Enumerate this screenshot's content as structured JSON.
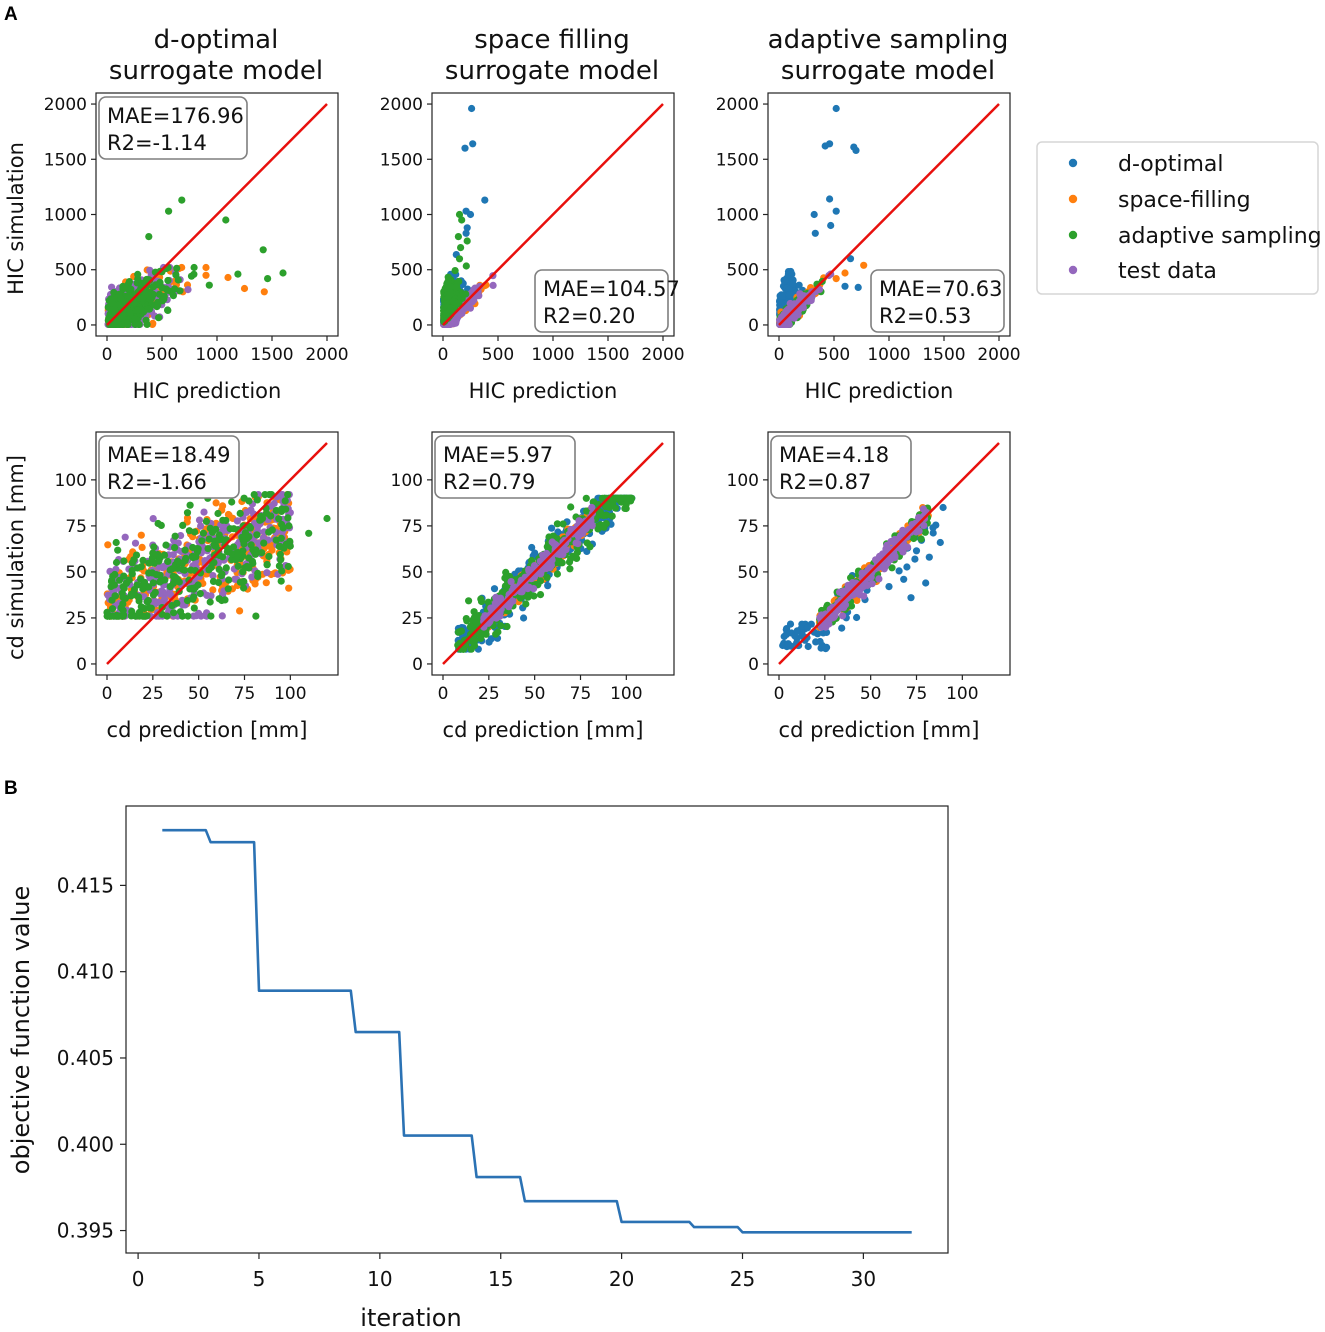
{
  "panel_labels": {
    "a": "A",
    "b": "B"
  },
  "colors": {
    "d_optimal": "#1f77b4",
    "space_filling": "#ff7f0e",
    "adaptive_sampling": "#2ca02c",
    "test_data": "#9467bd",
    "identity_line": "#e8100d",
    "objective_line": "#2b72b4"
  },
  "legend": {
    "items": [
      {
        "key": "d_optimal",
        "label": "d-optimal"
      },
      {
        "key": "space_filling",
        "label": "space-filling"
      },
      {
        "key": "adaptive_sampling",
        "label": "adaptive sampling"
      },
      {
        "key": "test_data",
        "label": "test data"
      }
    ]
  },
  "columns": [
    {
      "title_line1": "d-optimal",
      "title_line2": "surrogate model"
    },
    {
      "title_line1": "space filling",
      "title_line2": "surrogate model"
    },
    {
      "title_line1": "adaptive sampling",
      "title_line2": "surrogate model"
    }
  ],
  "chart_data": [
    {
      "id": "hic_dopt",
      "type": "scatter",
      "title": "d-optimal surrogate model",
      "xlabel": "HIC prediction",
      "ylabel": "HIC simulation",
      "xlim": [
        -100,
        2100
      ],
      "ylim": [
        -100,
        2100
      ],
      "xticks": [
        0,
        500,
        1000,
        1500,
        2000
      ],
      "yticks": [
        0,
        500,
        1000,
        1500,
        2000
      ],
      "stats": [
        "MAE=176.96",
        "R2=-1.14"
      ],
      "stats_position": "upper-left",
      "front_series": "adaptive_sampling",
      "series": [
        {
          "name": "d-optimal",
          "key": "d_optimal",
          "spread": "none"
        },
        {
          "name": "space-filling",
          "key": "space_filling",
          "spread": "wide",
          "points": [
            [
              1430,
              300
            ],
            [
              1250,
              330
            ],
            [
              1100,
              430
            ],
            [
              900,
              450
            ],
            [
              690,
              300
            ]
          ]
        },
        {
          "name": "adaptive sampling",
          "key": "adaptive_sampling",
          "spread": "wide",
          "points": [
            [
              680,
              1130
            ],
            [
              1080,
              950
            ],
            [
              560,
              1030
            ],
            [
              1420,
              680
            ],
            [
              1600,
              470
            ],
            [
              1460,
              420
            ],
            [
              1190,
              460
            ],
            [
              930,
              360
            ],
            [
              380,
              800
            ]
          ]
        },
        {
          "name": "test data",
          "key": "test_data",
          "spread": "wide"
        }
      ]
    },
    {
      "id": "hic_space",
      "type": "scatter",
      "title": "space filling surrogate model",
      "xlabel": "HIC prediction",
      "ylabel": "",
      "xlim": [
        -100,
        2100
      ],
      "ylim": [
        -100,
        2100
      ],
      "xticks": [
        0,
        500,
        1000,
        1500,
        2000
      ],
      "yticks": [
        0,
        500,
        1000,
        1500,
        2000
      ],
      "stats": [
        "MAE=104.57",
        "R2=0.20"
      ],
      "stats_position": "lower-right",
      "front_series": "adaptive_sampling",
      "series": [
        {
          "name": "d-optimal",
          "key": "d_optimal",
          "spread": "steep",
          "points": [
            [
              260,
              1960
            ],
            [
              270,
              1640
            ],
            [
              200,
              1600
            ],
            [
              210,
              1030
            ],
            [
              250,
              1000
            ],
            [
              380,
              1130
            ],
            [
              220,
              880
            ],
            [
              210,
              830
            ]
          ]
        },
        {
          "name": "space-filling",
          "key": "space_filling",
          "spread": "tight"
        },
        {
          "name": "adaptive sampling",
          "key": "adaptive_sampling",
          "spread": "steep",
          "points": [
            [
              150,
              1000
            ],
            [
              170,
              950
            ],
            [
              140,
              800
            ],
            [
              220,
              760
            ],
            [
              160,
              700
            ]
          ]
        },
        {
          "name": "test data",
          "key": "test_data",
          "spread": "tight"
        }
      ]
    },
    {
      "id": "hic_adapt",
      "type": "scatter",
      "title": "adaptive sampling surrogate model",
      "xlabel": "HIC prediction",
      "ylabel": "",
      "xlim": [
        -100,
        2100
      ],
      "ylim": [
        -100,
        2100
      ],
      "xticks": [
        0,
        500,
        1000,
        1500,
        2000
      ],
      "yticks": [
        0,
        500,
        1000,
        1500,
        2000
      ],
      "stats": [
        "MAE=70.63",
        "R2=0.53"
      ],
      "stats_position": "lower-right",
      "front_series": "test_data",
      "series": [
        {
          "name": "d-optimal",
          "key": "d_optimal",
          "spread": "steep",
          "points": [
            [
              520,
              1960
            ],
            [
              460,
              1640
            ],
            [
              420,
              1620
            ],
            [
              680,
              1610
            ],
            [
              700,
              1580
            ],
            [
              460,
              1140
            ],
            [
              520,
              1030
            ],
            [
              320,
              1000
            ],
            [
              470,
              900
            ],
            [
              330,
              830
            ],
            [
              650,
              600
            ],
            [
              720,
              340
            ],
            [
              600,
              350
            ]
          ]
        },
        {
          "name": "space-filling",
          "key": "space_filling",
          "spread": "tight",
          "points": [
            [
              770,
              540
            ],
            [
              600,
              470
            ],
            [
              520,
              420
            ]
          ]
        },
        {
          "name": "adaptive sampling",
          "key": "adaptive_sampling",
          "spread": "tight"
        },
        {
          "name": "test data",
          "key": "test_data",
          "spread": "tight"
        }
      ]
    },
    {
      "id": "cd_dopt",
      "type": "scatter",
      "title": "",
      "xlabel": "cd prediction [mm]",
      "ylabel": "cd simulation [mm]",
      "xlim": [
        -6,
        126
      ],
      "ylim": [
        -6,
        126
      ],
      "xticks": [
        0,
        25,
        50,
        75,
        100
      ],
      "yticks": [
        0,
        25,
        50,
        75,
        100
      ],
      "stats": [
        "MAE=18.49",
        "R2=-1.66"
      ],
      "stats_position": "upper-left",
      "front_series": "adaptive_sampling",
      "series": [
        {
          "name": "d-optimal",
          "key": "d_optimal",
          "spread": "none"
        },
        {
          "name": "space-filling",
          "key": "space_filling",
          "spread": "cdwide"
        },
        {
          "name": "adaptive sampling",
          "key": "adaptive_sampling",
          "spread": "cdwide",
          "points": [
            [
              120,
              79
            ],
            [
              110,
              71
            ],
            [
              100,
              64
            ],
            [
              95,
              45
            ],
            [
              68,
              88
            ],
            [
              55,
              90
            ],
            [
              5,
              66
            ],
            [
              3,
              30
            ],
            [
              0,
              28
            ],
            [
              30,
              27
            ]
          ]
        },
        {
          "name": "test data",
          "key": "test_data",
          "spread": "cdwide"
        }
      ]
    },
    {
      "id": "cd_space",
      "type": "scatter",
      "title": "",
      "xlabel": "cd prediction [mm]",
      "ylabel": "",
      "xlim": [
        -6,
        126
      ],
      "ylim": [
        -6,
        126
      ],
      "xticks": [
        0,
        25,
        50,
        75,
        100
      ],
      "yticks": [
        0,
        25,
        50,
        75,
        100
      ],
      "stats": [
        "MAE=5.97",
        "R2=0.79"
      ],
      "stats_position": "upper-left",
      "front_series": "test_data",
      "series": [
        {
          "name": "d-optimal",
          "key": "d_optimal",
          "spread": "cdmid"
        },
        {
          "name": "space-filling",
          "key": "space_filling",
          "spread": "cdtight"
        },
        {
          "name": "adaptive sampling",
          "key": "adaptive_sampling",
          "spread": "cdmid"
        },
        {
          "name": "test data",
          "key": "test_data",
          "spread": "cdtight"
        }
      ]
    },
    {
      "id": "cd_adapt",
      "type": "scatter",
      "title": "",
      "xlabel": "cd prediction [mm]",
      "ylabel": "",
      "xlim": [
        -6,
        126
      ],
      "ylim": [
        -6,
        126
      ],
      "xticks": [
        0,
        25,
        50,
        75,
        100
      ],
      "yticks": [
        0,
        25,
        50,
        75,
        100
      ],
      "stats": [
        "MAE=4.18",
        "R2=0.87"
      ],
      "stats_position": "upper-left",
      "front_series": "test_data",
      "series": [
        {
          "name": "d-optimal",
          "key": "d_optimal",
          "spread": "cdsparse",
          "points": [
            [
              2,
              10
            ],
            [
              5,
              11
            ],
            [
              10,
              18
            ],
            [
              14,
              14
            ],
            [
              20,
              12
            ],
            [
              25,
              9
            ],
            [
              30,
              28
            ],
            [
              40,
              48
            ],
            [
              48,
              40
            ],
            [
              60,
              42
            ],
            [
              68,
              46
            ],
            [
              72,
              36
            ],
            [
              80,
              44
            ],
            [
              82,
              58
            ],
            [
              88,
              66
            ],
            [
              84,
              74
            ],
            [
              80,
              82
            ]
          ]
        },
        {
          "name": "space-filling",
          "key": "space_filling",
          "spread": "cdtight"
        },
        {
          "name": "adaptive sampling",
          "key": "adaptive_sampling",
          "spread": "cdtight"
        },
        {
          "name": "test data",
          "key": "test_data",
          "spread": "cdtight"
        }
      ]
    },
    {
      "id": "objective",
      "type": "line",
      "title": "",
      "xlabel": "iteration",
      "ylabel": "objective function value",
      "xlim": [
        -0.5,
        33.5
      ],
      "ylim": [
        0.3937,
        0.4196
      ],
      "xticks": [
        0,
        5,
        10,
        15,
        20,
        25,
        30
      ],
      "yticks": [
        0.395,
        0.4,
        0.405,
        0.41,
        0.415
      ],
      "ytick_labels": [
        "0.395",
        "0.400",
        "0.405",
        "0.410",
        "0.415"
      ],
      "x": [
        1,
        2,
        3,
        4,
        5,
        6,
        7,
        8,
        9,
        10,
        11,
        12,
        13,
        14,
        15,
        16,
        17,
        18,
        19,
        20,
        21,
        22,
        23,
        24,
        25,
        26,
        27,
        28,
        29,
        30,
        31,
        32
      ],
      "y": [
        0.4182,
        0.4182,
        0.4175,
        0.4175,
        0.4089,
        0.4089,
        0.4089,
        0.4089,
        0.4065,
        0.4065,
        0.4005,
        0.4005,
        0.4005,
        0.3981,
        0.3981,
        0.3967,
        0.3967,
        0.3967,
        0.3967,
        0.3955,
        0.3955,
        0.3955,
        0.3952,
        0.3952,
        0.3949,
        0.3949,
        0.3949,
        0.3949,
        0.3949,
        0.3949,
        0.3949,
        0.3949
      ]
    }
  ]
}
